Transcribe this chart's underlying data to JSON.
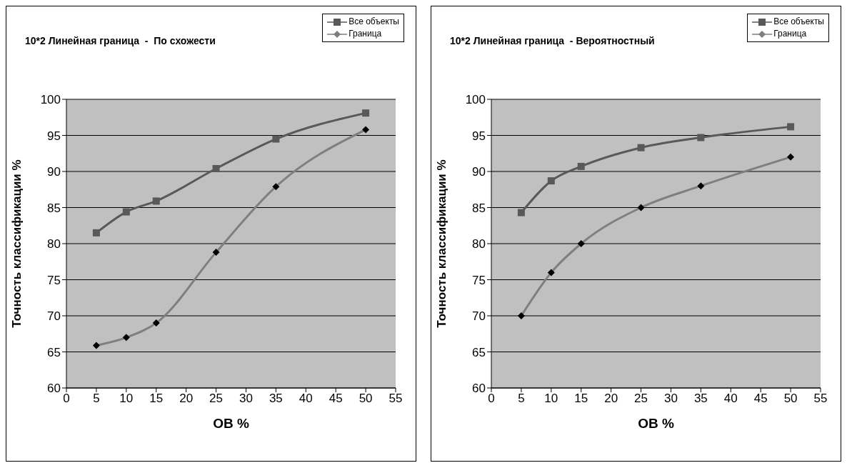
{
  "chart_data": [
    {
      "type": "line",
      "title": "10*2 Линейная граница  -  По схожести",
      "xlabel": "ОВ %",
      "ylabel": "Точность классификации %",
      "x": [
        5,
        10,
        15,
        25,
        35,
        50
      ],
      "series": [
        {
          "name": "Все объекты",
          "color": "#595959",
          "marker": "square",
          "values": [
            81.5,
            84.4,
            85.9,
            90.4,
            94.5,
            98.1
          ]
        },
        {
          "name": "Граница",
          "color": "#7f7f7f",
          "marker": "diamond",
          "values": [
            65.9,
            67,
            69,
            78.8,
            87.9,
            95.8
          ]
        }
      ],
      "xlim": [
        0,
        55
      ],
      "xticks": [
        0,
        5,
        10,
        15,
        20,
        25,
        30,
        35,
        40,
        45,
        50,
        55
      ],
      "ylim": [
        60,
        100
      ],
      "yticks": [
        60,
        65,
        70,
        75,
        80,
        85,
        90,
        95,
        100
      ],
      "grid": "y",
      "legend": "top right",
      "line_style": "solid"
    },
    {
      "type": "line",
      "title": "10*2 Линейная граница  - Вероятностный",
      "xlabel": "ОВ %",
      "ylabel": "Точность классификации %",
      "x": [
        5,
        10,
        15,
        25,
        35,
        50
      ],
      "series": [
        {
          "name": "Все объекты",
          "color": "#595959",
          "marker": "square",
          "values": [
            84.3,
            88.7,
            90.7,
            93.3,
            94.7,
            96.2
          ]
        },
        {
          "name": "Граница",
          "color": "#7f7f7f",
          "marker": "diamond",
          "values": [
            70,
            76,
            80,
            85,
            88,
            92
          ]
        }
      ],
      "xlim": [
        0,
        55
      ],
      "xticks": [
        0,
        5,
        10,
        15,
        20,
        25,
        30,
        35,
        40,
        45,
        50,
        55
      ],
      "ylim": [
        60,
        100
      ],
      "yticks": [
        60,
        65,
        70,
        75,
        80,
        85,
        90,
        95,
        100
      ],
      "grid": "y",
      "legend": "top right",
      "line_style": "solid"
    }
  ]
}
